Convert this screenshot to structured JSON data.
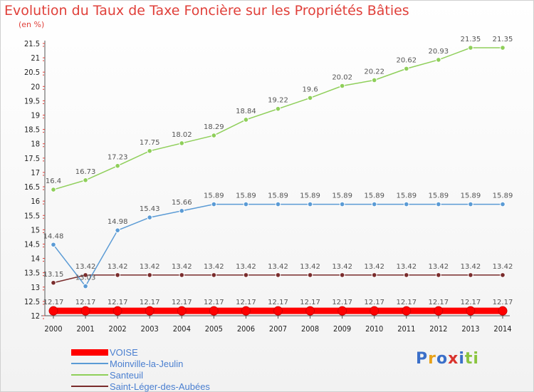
{
  "title": "Evolution du Taux de Taxe Foncière sur les Propriétés Bâties",
  "subtitle": "(en %)",
  "logo": {
    "text": "Proxiti",
    "letters": [
      "P",
      "r",
      "o",
      "x",
      "i",
      "t",
      "i"
    ],
    "colors": [
      "#3a6fc9",
      "#e8a21a",
      "#3a6fc9",
      "#d9332d",
      "#3a6fc9",
      "#8ac43f",
      "#8ac43f"
    ]
  },
  "chart_data": {
    "type": "line",
    "title": "Evolution du Taux de Taxe Foncière sur les Propriétés Bâties",
    "ylabel": "(en %)",
    "xlabel": "",
    "x": [
      2000,
      2001,
      2002,
      2003,
      2004,
      2005,
      2006,
      2007,
      2008,
      2009,
      2010,
      2011,
      2012,
      2013,
      2014
    ],
    "ylim": [
      12,
      21.5
    ],
    "yticks": [
      "12",
      "12.5",
      "13",
      "13.5",
      "14",
      "14.5",
      "15",
      "15.5",
      "16",
      "16.5",
      "17",
      "17.5",
      "18",
      "18.5",
      "19",
      "19.5",
      "20",
      "20.5",
      "21",
      "21.5"
    ],
    "grid": false,
    "legend": "bottom-left",
    "series": [
      {
        "name": "VOISE",
        "color": "#ff0000",
        "values": [
          12.17,
          12.17,
          12.17,
          12.17,
          12.17,
          12.17,
          12.17,
          12.17,
          12.17,
          12.17,
          12.17,
          12.17,
          12.17,
          12.17,
          12.17
        ],
        "labels": [
          "12.17",
          "12.17",
          "12.17",
          "12.17",
          "12.17",
          "12.17",
          "12.17",
          "12.17",
          "12.17",
          "12.17",
          "12.17",
          "12.17",
          "12.17",
          "12.17",
          "12.17"
        ]
      },
      {
        "name": "Moinville-la-Jeulin",
        "color": "#5b9bd5",
        "values": [
          14.48,
          13.03,
          14.98,
          15.43,
          15.66,
          15.89,
          15.89,
          15.89,
          15.89,
          15.89,
          15.89,
          15.89,
          15.89,
          15.89,
          15.89
        ],
        "labels": [
          "14.48",
          "13.03",
          "14.98",
          "15.43",
          "15.66",
          "15.89",
          "15.89",
          "15.89",
          "15.89",
          "15.89",
          "15.89",
          "15.89",
          "15.89",
          "15.89",
          "15.89"
        ]
      },
      {
        "name": "Santeuil",
        "color": "#8fcf5a",
        "values": [
          16.4,
          16.73,
          17.23,
          17.75,
          18.02,
          18.29,
          18.84,
          19.22,
          19.6,
          20.02,
          20.22,
          20.62,
          20.93,
          21.35,
          21.35
        ],
        "labels": [
          "16.4",
          "16.73",
          "17.23",
          "17.75",
          "18.02",
          "18.29",
          "18.84",
          "19.22",
          "19.6",
          "20.02",
          "20.22",
          "20.62",
          "20.93",
          "21.35",
          "21.35"
        ]
      },
      {
        "name": "Saint-Léger-des-Aubées",
        "color": "#7a2c2c",
        "values": [
          13.15,
          13.42,
          13.42,
          13.42,
          13.42,
          13.42,
          13.42,
          13.42,
          13.42,
          13.42,
          13.42,
          13.42,
          13.42,
          13.42,
          13.42
        ],
        "labels": [
          "13.15",
          "13.42",
          "13.42",
          "13.42",
          "13.42",
          "13.42",
          "13.42",
          "13.42",
          "13.42",
          "13.42",
          "13.42",
          "13.42",
          "13.42",
          "13.42",
          "13.42"
        ]
      }
    ]
  }
}
